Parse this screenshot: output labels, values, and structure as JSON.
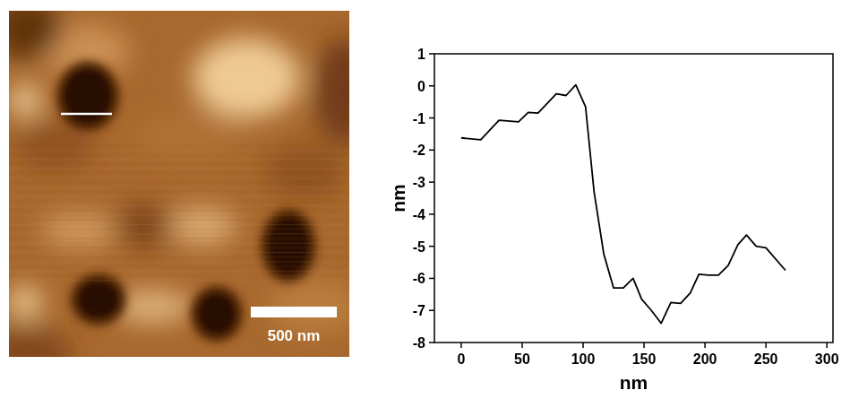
{
  "chart_data": {
    "type": "line",
    "color": "#000000",
    "x": [
      0,
      16,
      31,
      47,
      55,
      63,
      78,
      86,
      94,
      102,
      109,
      117,
      125,
      133,
      141,
      148,
      156,
      164,
      172,
      180,
      188,
      195,
      203,
      211,
      219,
      227,
      234,
      242,
      250,
      266
    ],
    "values": [
      -1.62,
      -1.68,
      -1.07,
      -1.12,
      -0.83,
      -0.85,
      -0.25,
      -0.3,
      0.03,
      -0.65,
      -3.3,
      -5.25,
      -6.3,
      -6.3,
      -6.0,
      -6.65,
      -7.0,
      -7.4,
      -6.75,
      -6.78,
      -6.45,
      -5.87,
      -5.9,
      -5.9,
      -5.6,
      -4.95,
      -4.65,
      -5.0,
      -5.05,
      -5.75
    ],
    "x_label": "nm",
    "y_label": "nm",
    "xlim": [
      -22,
      305
    ],
    "ylim": [
      -8,
      1
    ],
    "xticks": [
      0,
      50,
      100,
      150,
      200,
      250,
      300
    ],
    "yticks": [
      -8,
      -7,
      -6,
      -5,
      -4,
      -3,
      -2,
      -1,
      0,
      1
    ]
  },
  "afm_image": {
    "scale_bar": "500 nm"
  }
}
